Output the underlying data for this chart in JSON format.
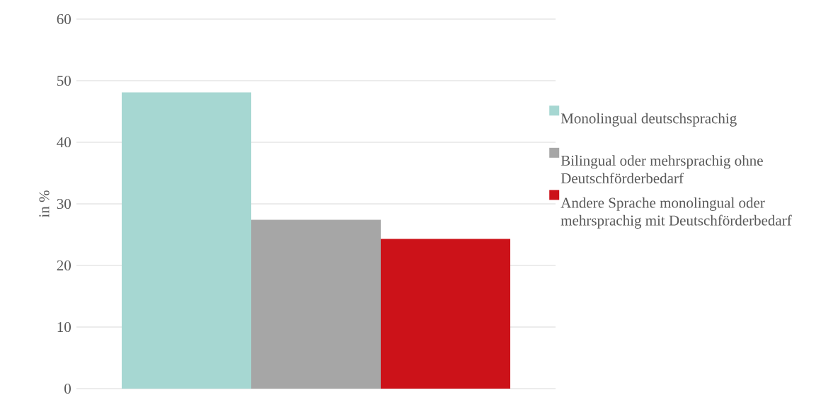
{
  "chart_data": {
    "type": "bar",
    "ylabel": "in %",
    "categories": [
      null
    ],
    "series": [
      {
        "name": "Monolingual deutschsprachig",
        "color": "#a6d7d2",
        "values": [
          48.1
        ]
      },
      {
        "name": "Bilingual oder mehrsprachig ohne Deutschförderbedarf",
        "color": "#a6a6a6",
        "values": [
          27.4
        ]
      },
      {
        "name": "Andere Sprache monolingual oder mehrsprachig mit Deutschförderbedarf",
        "color": "#cc1219",
        "values": [
          24.3
        ]
      }
    ],
    "ylim": [
      0,
      60
    ],
    "yticks": [
      0,
      10,
      20,
      30,
      40,
      50,
      60
    ],
    "grid": "y",
    "legend": "right"
  }
}
